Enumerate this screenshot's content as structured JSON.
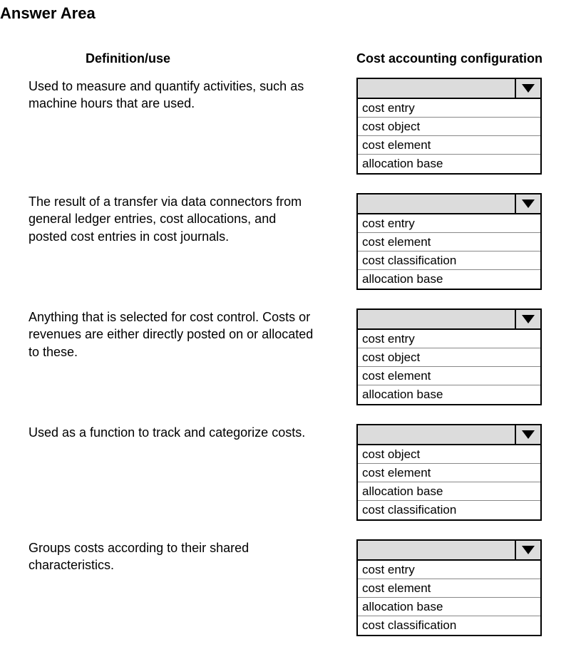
{
  "title": "Answer Area",
  "headers": {
    "left": "Definition/use",
    "right": "Cost accounting configuration"
  },
  "rows": [
    {
      "definition": "Used to measure and quantify activities, such as machine hours that are used.",
      "options": [
        "cost entry",
        "cost object",
        "cost element",
        "allocation base"
      ]
    },
    {
      "definition": "The result of a transfer via data connectors from general ledger entries, cost allocations, and posted cost entries in cost journals.",
      "options": [
        "cost entry",
        "cost element",
        "cost classification",
        "allocation base"
      ]
    },
    {
      "definition": "Anything that is selected for cost control. Costs or revenues are either directly posted on or allocated to these.",
      "options": [
        "cost entry",
        "cost object",
        "cost element",
        "allocation base"
      ]
    },
    {
      "definition": "Used as a function to track and categorize costs.",
      "options": [
        "cost object",
        "cost element",
        "allocation base",
        "cost classification"
      ]
    },
    {
      "definition": "Groups costs according to their shared characteristics.",
      "options": [
        "cost entry",
        "cost element",
        "allocation base",
        "cost classification"
      ]
    }
  ],
  "colors": {
    "dropdown_bg": "#dcdcdc",
    "border": "#000000",
    "option_divider": "#888888",
    "background": "#ffffff",
    "text": "#000000"
  }
}
